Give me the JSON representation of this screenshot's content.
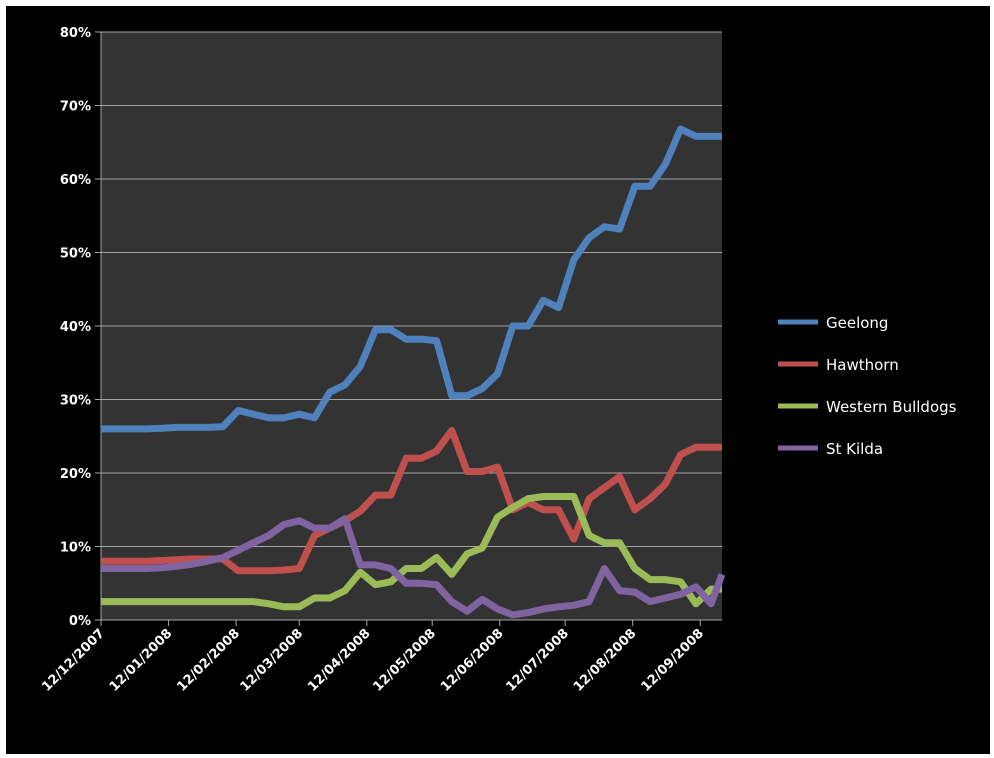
{
  "chart_data": {
    "type": "line",
    "title": "",
    "xlabel": "",
    "ylabel": "",
    "ylim": [
      0,
      80
    ],
    "y_ticks": [
      "0%",
      "10%",
      "20%",
      "30%",
      "40%",
      "50%",
      "60%",
      "70%",
      "80%"
    ],
    "x_ticks": [
      "12/12/2007",
      "12/01/2008",
      "12/02/2008",
      "12/03/2008",
      "12/04/2008",
      "12/05/2008",
      "12/06/2008",
      "12/07/2008",
      "12/08/2008",
      "12/09/2008"
    ],
    "x_range": [
      "2007-12-12",
      "2008-09-22"
    ],
    "grid": "horizontal",
    "background": "#333333",
    "legend_position": "right",
    "x": [
      "2007-12-12",
      "2007-12-19",
      "2007-12-26",
      "2008-01-02",
      "2008-01-09",
      "2008-01-16",
      "2008-01-23",
      "2008-01-30",
      "2008-02-06",
      "2008-02-13",
      "2008-02-20",
      "2008-02-27",
      "2008-03-05",
      "2008-03-12",
      "2008-03-19",
      "2008-03-26",
      "2008-04-02",
      "2008-04-09",
      "2008-04-16",
      "2008-04-23",
      "2008-04-30",
      "2008-05-07",
      "2008-05-14",
      "2008-05-21",
      "2008-05-28",
      "2008-06-04",
      "2008-06-11",
      "2008-06-18",
      "2008-06-25",
      "2008-07-02",
      "2008-07-09",
      "2008-07-16",
      "2008-07-23",
      "2008-07-30",
      "2008-08-06",
      "2008-08-13",
      "2008-08-20",
      "2008-08-27",
      "2008-09-03",
      "2008-09-10",
      "2008-09-17",
      "2008-09-22"
    ],
    "series": [
      {
        "name": "Geelong",
        "color": "#4f81bd",
        "values": [
          26,
          26,
          26,
          26,
          26.1,
          26.2,
          26.2,
          26.2,
          26.3,
          28.5,
          28,
          27.5,
          27.5,
          28,
          27.5,
          31,
          32,
          34.5,
          39.5,
          39.5,
          38.2,
          38.2,
          38,
          30.5,
          30.5,
          31.5,
          33.5,
          40,
          40,
          43.5,
          42.5,
          49,
          52,
          53.5,
          53.2,
          59,
          59,
          62,
          66.8,
          65.8,
          65.8,
          65.8
        ]
      },
      {
        "name": "Hawthorn",
        "color": "#c0504d",
        "values": [
          8,
          8,
          8,
          8,
          8.1,
          8.2,
          8.3,
          8.3,
          8.3,
          6.7,
          6.7,
          6.7,
          6.8,
          7,
          11.5,
          12.5,
          13.5,
          14.8,
          17,
          17,
          22,
          22,
          23,
          25.8,
          20.2,
          20.2,
          20.8,
          15,
          16,
          15,
          15,
          11,
          16.5,
          18,
          19.5,
          15,
          16.5,
          18.5,
          22.5,
          23.5,
          23.5,
          23.5
        ]
      },
      {
        "name": "Western Bulldogs",
        "color": "#9bbb59",
        "values": [
          2.5,
          2.5,
          2.5,
          2.5,
          2.5,
          2.5,
          2.5,
          2.5,
          2.5,
          2.5,
          2.5,
          2.2,
          1.8,
          1.8,
          3,
          3,
          4,
          6.5,
          4.8,
          5.2,
          7,
          7,
          8.5,
          6.2,
          9,
          9.8,
          14,
          15.3,
          16.5,
          16.8,
          16.8,
          16.8,
          11.5,
          10.5,
          10.5,
          7,
          5.5,
          5.5,
          5.2,
          2.2,
          4.2,
          4.2
        ]
      },
      {
        "name": "St Kilda",
        "color": "#8064a2",
        "values": [
          7,
          7,
          7,
          7,
          7.1,
          7.3,
          7.6,
          8,
          8.5,
          9.5,
          10.5,
          11.5,
          13,
          13.5,
          12.5,
          12.5,
          13.8,
          7.5,
          7.5,
          7,
          5,
          5,
          4.8,
          2.5,
          1.2,
          2.8,
          1.5,
          0.7,
          1,
          1.5,
          1.8,
          2,
          2.5,
          7,
          4,
          3.8,
          2.5,
          3,
          3.5,
          4.5,
          2.2,
          6.2
        ]
      }
    ]
  }
}
